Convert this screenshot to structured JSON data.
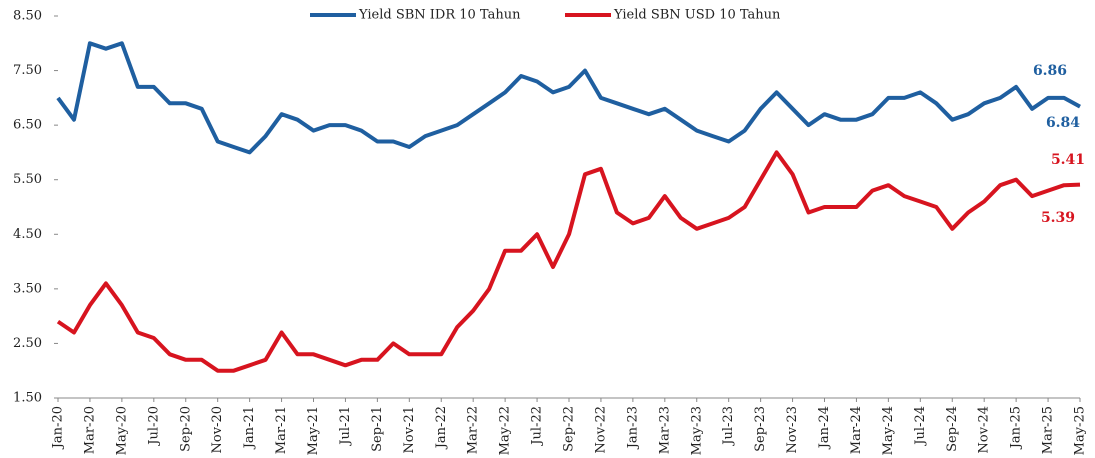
{
  "chart_data": {
    "type": "line",
    "categories": [
      "Jan-20",
      null,
      "Mar-20",
      null,
      "May-20",
      null,
      "Jul-20",
      null,
      "Sep-20",
      null,
      "Nov-20",
      null,
      "Jan-21",
      null,
      "Mar-21",
      null,
      "May-21",
      null,
      "Jul-21",
      null,
      "Sep-21",
      null,
      "Nov-21",
      null,
      "Jan-22",
      null,
      "Mar-22",
      null,
      "May-22",
      null,
      "Jul-22",
      null,
      "Sep-22",
      null,
      "Nov-22",
      null,
      "Jan-23",
      null,
      "Mar-23",
      null,
      "May-23",
      null,
      "Jul-23",
      null,
      "Sep-23",
      null,
      "Nov-23",
      null,
      "Jan-24",
      null,
      "Mar-24",
      null,
      "May-24",
      null,
      "Jul-24",
      null,
      "Sep-24",
      null,
      "Nov-24",
      null,
      "Jan-25",
      null,
      "Mar-25",
      null,
      "May-25"
    ],
    "series": [
      {
        "name": "Yield SBN IDR 10 Tahun",
        "color": "#1f5fa0",
        "values": [
          7.0,
          6.6,
          8.0,
          7.9,
          8.0,
          7.2,
          7.2,
          6.9,
          6.9,
          6.8,
          6.2,
          6.1,
          6.0,
          6.3,
          6.7,
          6.6,
          6.4,
          6.5,
          6.5,
          6.4,
          6.2,
          6.2,
          6.1,
          6.3,
          6.4,
          6.5,
          6.7,
          6.9,
          7.1,
          7.4,
          7.3,
          7.1,
          7.2,
          7.5,
          7.0,
          6.9,
          6.8,
          6.7,
          6.8,
          6.6,
          6.4,
          6.3,
          6.2,
          6.4,
          6.8,
          7.1,
          6.8,
          6.5,
          6.7,
          6.6,
          6.6,
          6.7,
          7.0,
          7.0,
          7.1,
          6.9,
          6.6,
          6.7,
          6.9,
          7.0,
          7.2,
          6.8,
          7.0,
          7.0,
          6.84
        ]
      },
      {
        "name": "Yield SBN USD 10 Tahun",
        "color": "#d7141f",
        "values": [
          2.9,
          2.7,
          3.2,
          3.6,
          3.2,
          2.7,
          2.6,
          2.3,
          2.2,
          2.2,
          2.0,
          2.0,
          2.1,
          2.2,
          2.7,
          2.3,
          2.3,
          2.2,
          2.1,
          2.2,
          2.2,
          2.5,
          2.3,
          2.3,
          2.3,
          2.8,
          3.1,
          3.5,
          4.2,
          4.2,
          4.5,
          3.9,
          4.5,
          5.6,
          5.7,
          4.9,
          4.7,
          4.8,
          5.2,
          4.8,
          4.6,
          4.7,
          4.8,
          5.0,
          5.5,
          6.0,
          5.6,
          4.9,
          5.0,
          5.0,
          5.0,
          5.3,
          5.4,
          5.2,
          5.1,
          5.0,
          4.6,
          4.9,
          5.1,
          5.4,
          5.5,
          5.2,
          5.3,
          5.4,
          5.41
        ]
      }
    ],
    "ylim": [
      1.5,
      8.5
    ],
    "yticks": [
      {
        "value": 1.5,
        "label": "1.50"
      },
      {
        "value": 2.5,
        "label": "2.50"
      },
      {
        "value": 3.5,
        "label": "3.50"
      },
      {
        "value": 4.5,
        "label": "4.50"
      },
      {
        "value": 5.5,
        "label": "5.50"
      },
      {
        "value": 6.5,
        "label": "6.50"
      },
      {
        "value": 7.5,
        "label": "7.50"
      },
      {
        "value": 8.5,
        "label": "8.50"
      }
    ],
    "grid": false,
    "legend": "top",
    "annotations": [
      {
        "text": "6.86",
        "color": "#1f5fa0"
      },
      {
        "text": "6.84",
        "color": "#1f5fa0"
      },
      {
        "text": "5.41",
        "color": "#d7141f"
      },
      {
        "text": "5.39",
        "color": "#d7141f"
      }
    ]
  }
}
